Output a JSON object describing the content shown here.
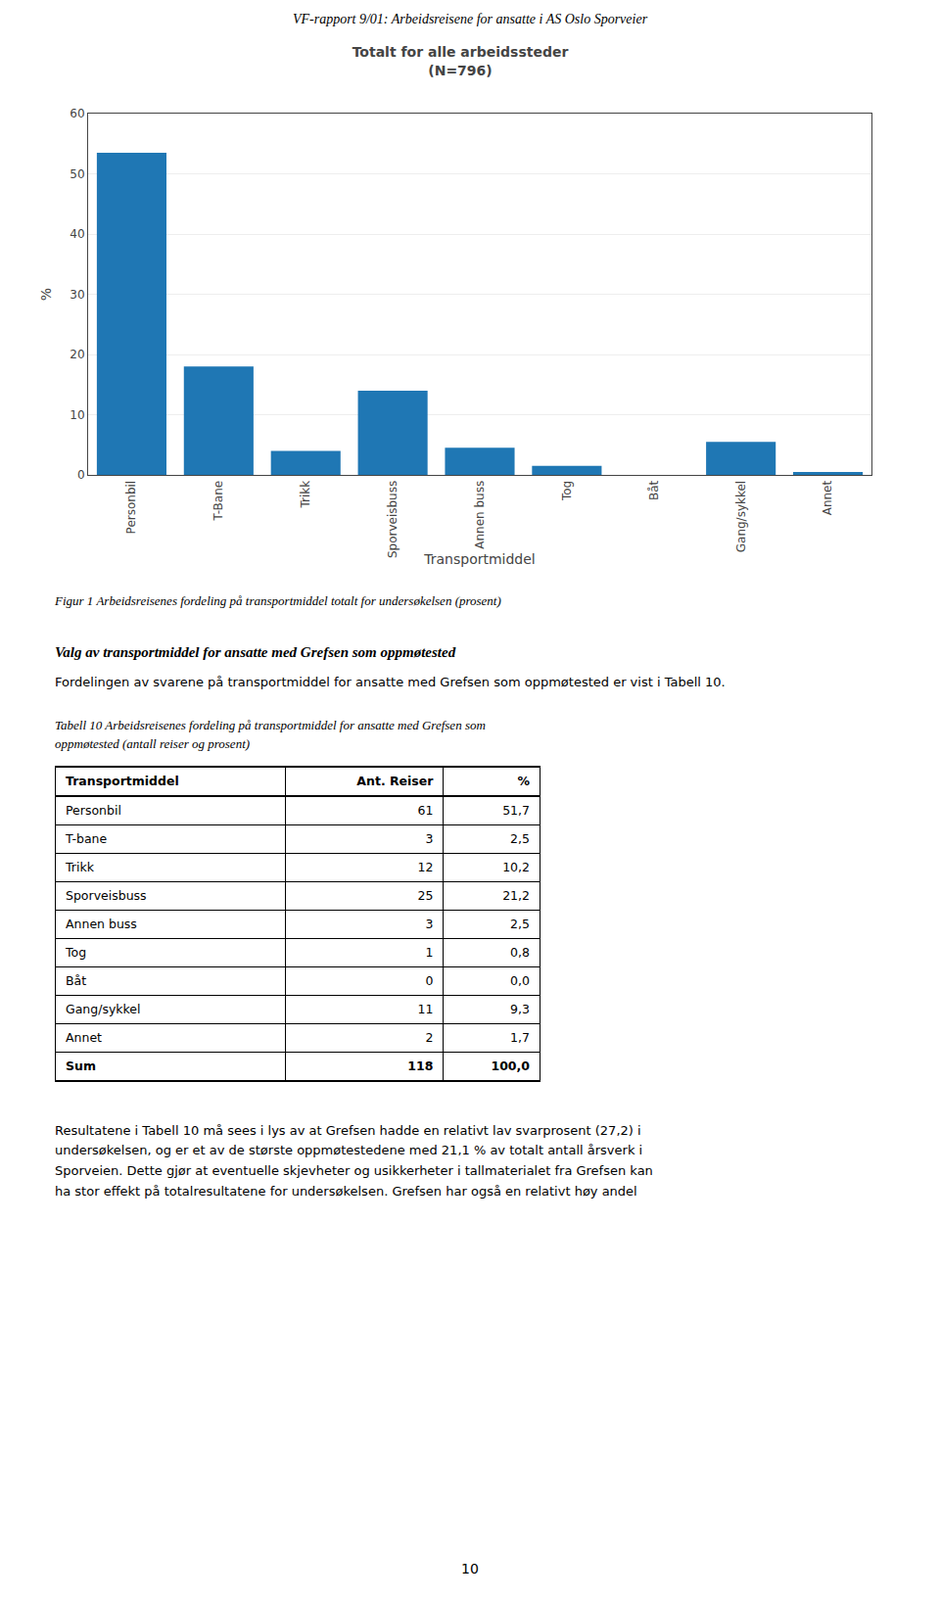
{
  "chart_data": {
    "type": "bar",
    "title": "Totalt for alle arbeidssteder",
    "subtitle": "(N=796)",
    "categories": [
      "Personbil",
      "T-Bane",
      "Trikk",
      "Sporveisbuss",
      "Annen buss",
      "Tog",
      "Båt",
      "Gang/sykkel",
      "Annet"
    ],
    "values": [
      53.5,
      18.0,
      4.0,
      14.0,
      4.5,
      1.5,
      0.0,
      5.5,
      0.5
    ],
    "xlabel": "Transportmiddel",
    "ylabel": "%",
    "ylim": [
      0,
      60
    ],
    "yticks": [
      0,
      10,
      20,
      30,
      40,
      50,
      60
    ],
    "grid": true
  },
  "page_title": "VF-rapport 9/01: Arbeidsreisene for ansatte i AS Oslo Sporveier",
  "figure_caption": "Figur 1 Arbeidsreisenes fordeling på transportmiddel totalt for undersøkelsen (prosent)",
  "section_heading": "Valg av transportmiddel for ansatte med Grefsen som oppmøtested",
  "section_text": "Fordelingen av svarene på transportmiddel for ansatte med Grefsen som oppmøtested er vist i Tabell 10.",
  "table_caption": [
    "Tabell 10 Arbeidsreisenes fordeling på transportmiddel for ansatte med Grefsen som",
    "oppmøtested (antall reiser og prosent)"
  ],
  "table": {
    "headers": [
      "Transportmiddel",
      "Ant. Reiser",
      "%"
    ],
    "rows": [
      [
        "Personbil",
        "61",
        "51,7"
      ],
      [
        "T-bane",
        "3",
        "2,5"
      ],
      [
        "Trikk",
        "12",
        "10,2"
      ],
      [
        "Sporveisbuss",
        "25",
        "21,2"
      ],
      [
        "Annen buss",
        "3",
        "2,5"
      ],
      [
        "Tog",
        "1",
        "0,8"
      ],
      [
        "Båt",
        "0",
        "0,0"
      ],
      [
        "Gang/sykkel",
        "11",
        "9,3"
      ],
      [
        "Annet",
        "2",
        "1,7"
      ],
      [
        "Sum",
        "118",
        "100,0"
      ]
    ]
  },
  "body_text": [
    "Resultatene i Tabell 10 må sees i lys av at Grefsen hadde en relativt lav svarprosent (27,2) i",
    "undersøkelsen, og er et av de største oppmøtestedene med 21,1 % av totalt antall årsverk i",
    "Sporveien. Dette gjør at eventuelle skjevheter og usikkerheter i tallmaterialet fra Grefsen kan",
    "ha stor effekt på totalresultatene for undersøkelsen. Grefsen har også en relativt høy andel"
  ],
  "page_number": "10"
}
